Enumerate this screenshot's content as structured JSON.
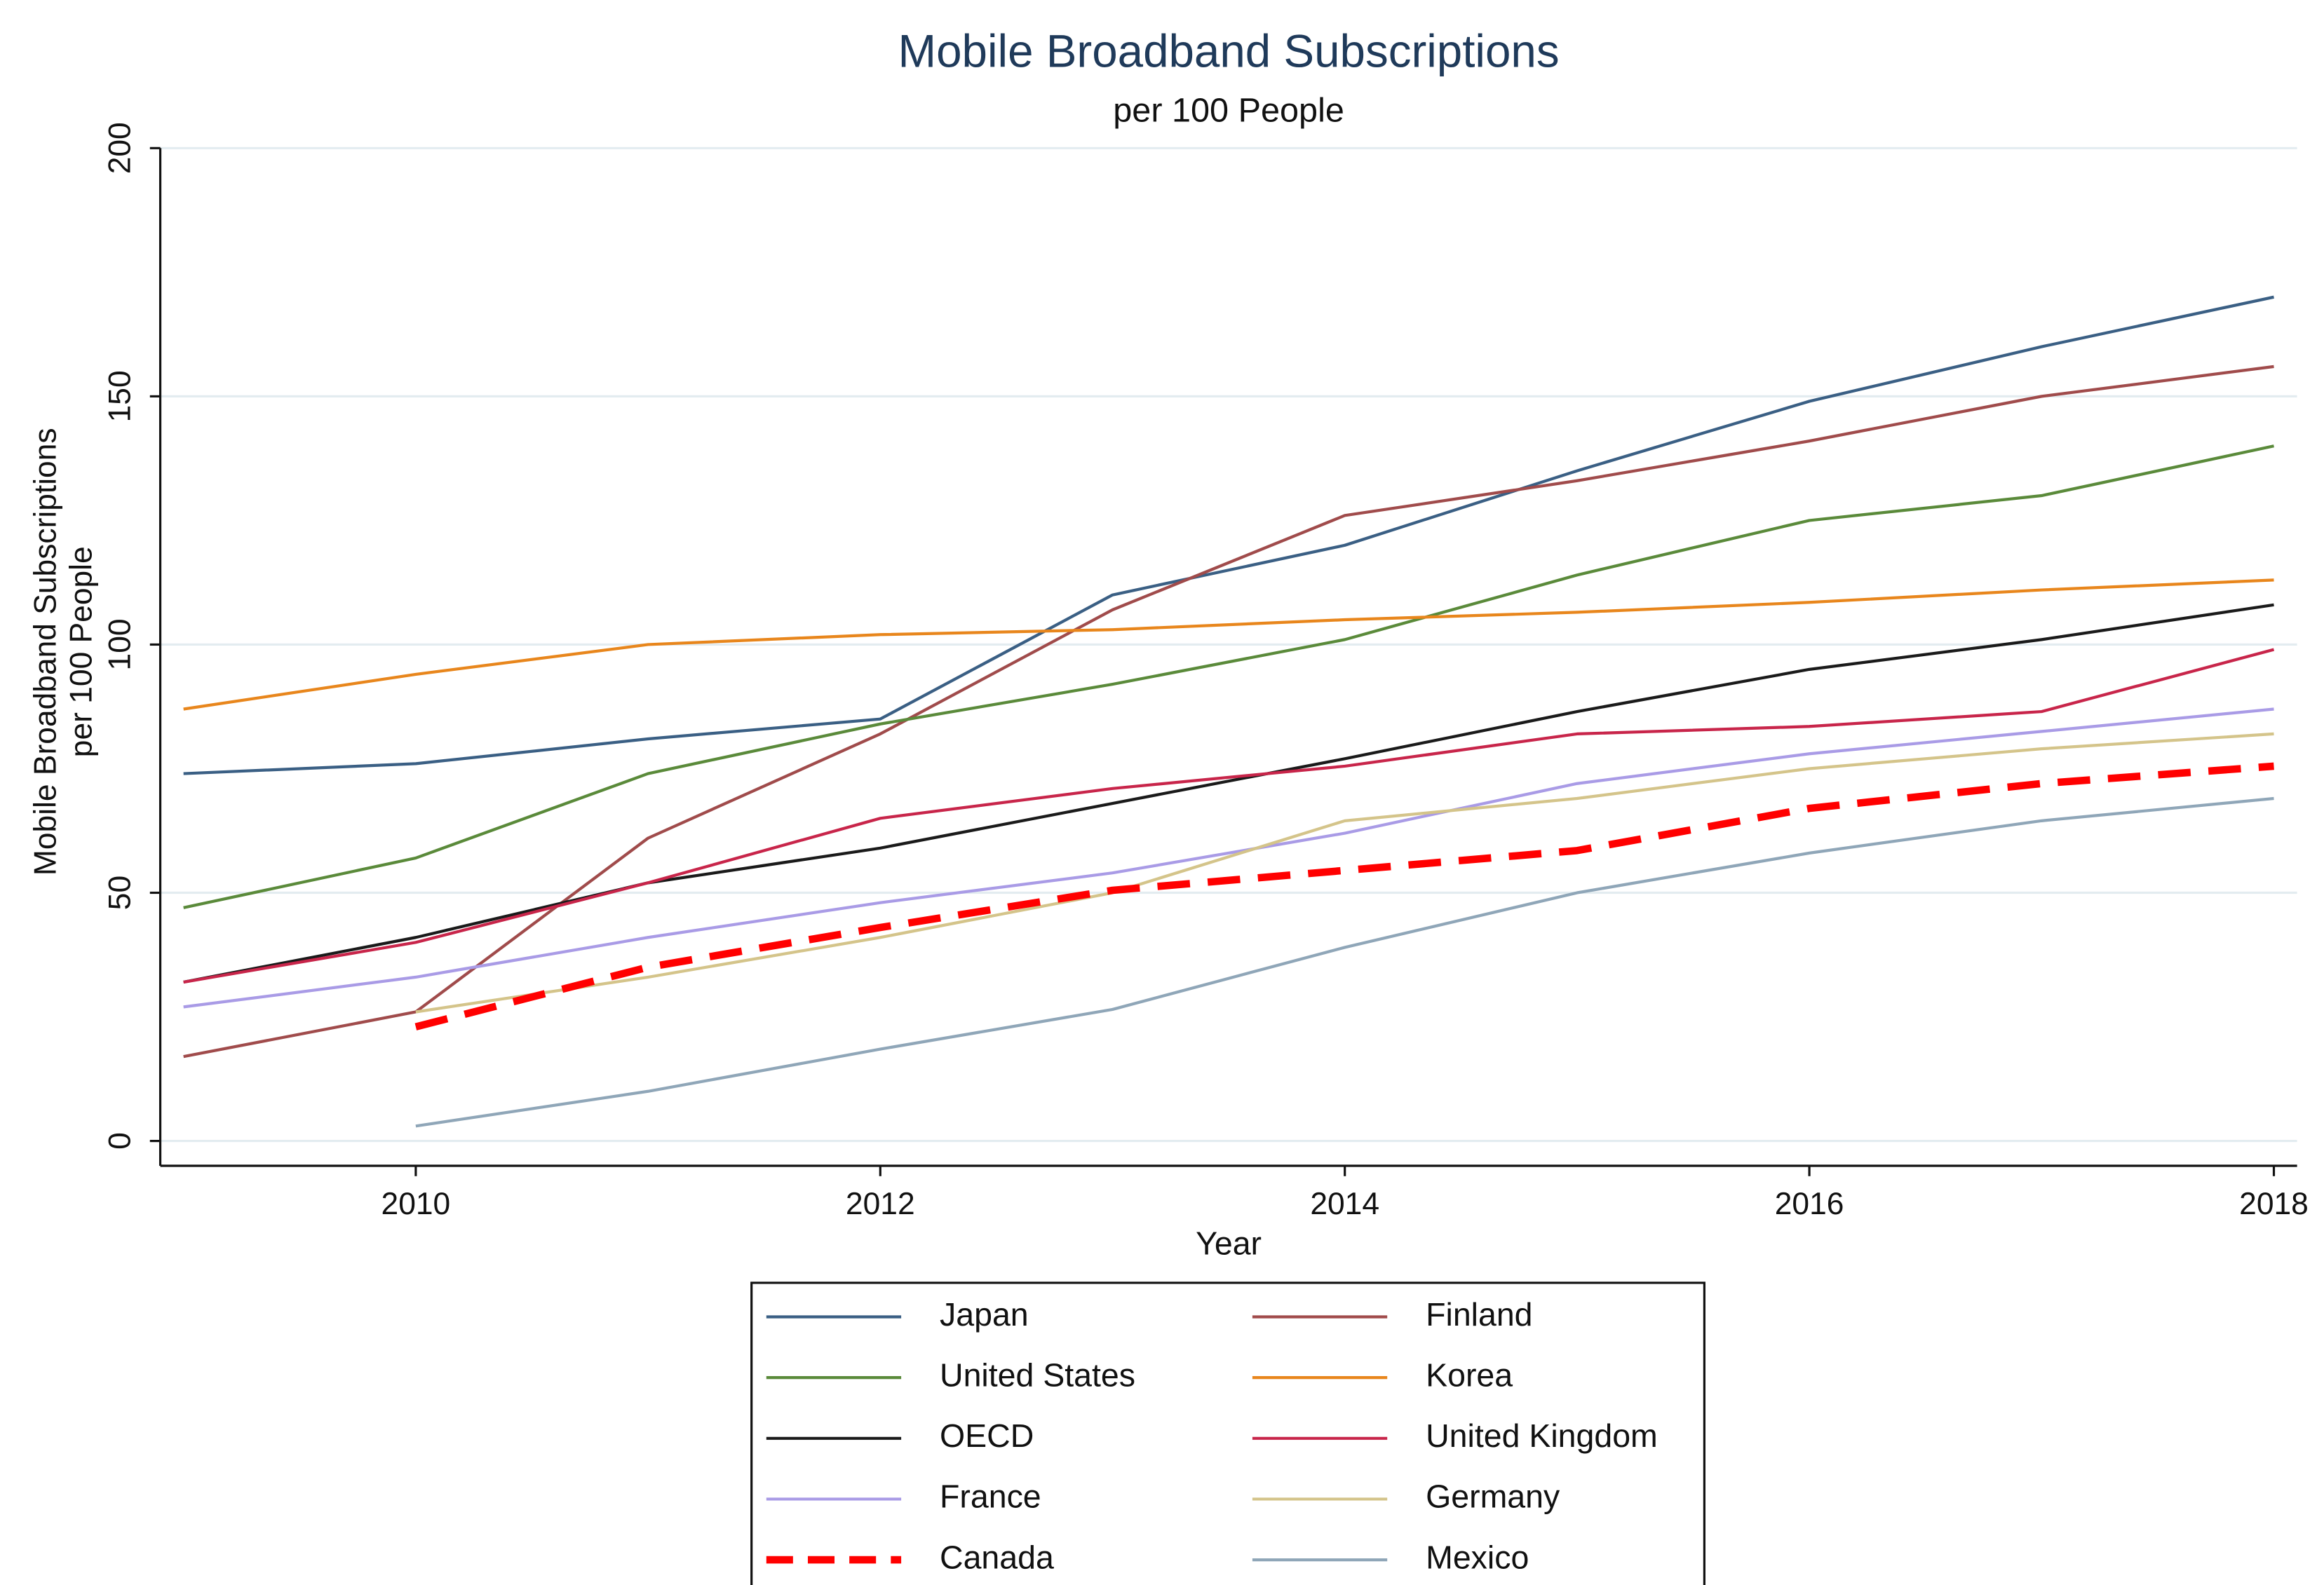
{
  "chart_data": {
    "type": "line",
    "title": "Mobile Broadband Subscriptions",
    "subtitle": "per 100 People",
    "x_label": "Year",
    "y_label": [
      "Mobile Broadband Subscriptions",
      "per 100 People"
    ],
    "x": [
      2009,
      2010,
      2011,
      2012,
      2013,
      2014,
      2015,
      2016,
      2017,
      2018
    ],
    "xlim": [
      2008.9,
      2018.1
    ],
    "xticks": [
      2010,
      2012,
      2014,
      2016,
      2018
    ],
    "ylim": [
      -5,
      200
    ],
    "yticks": [
      0,
      50,
      100,
      150,
      200
    ],
    "grid": true,
    "legend": "bottom",
    "series": [
      {
        "name": "Japan",
        "color": "#3a5f84",
        "values": [
          74,
          76,
          81,
          85,
          110,
          120,
          135,
          149,
          160,
          170
        ]
      },
      {
        "name": "Finland",
        "color": "#a04b4b",
        "values": [
          17,
          26,
          61,
          82,
          107,
          126,
          133,
          141,
          150,
          156
        ]
      },
      {
        "name": "United States",
        "color": "#5a8a3a",
        "values": [
          47,
          57,
          74,
          84,
          92,
          101,
          114,
          125,
          130,
          140
        ]
      },
      {
        "name": "Korea",
        "color": "#e8861c",
        "values": [
          87,
          94,
          100,
          102,
          103,
          105,
          106.5,
          108.5,
          111,
          113
        ]
      },
      {
        "name": "OECD",
        "color": "#1a1a1a",
        "values": [
          32,
          41,
          52,
          59,
          68,
          77,
          86.5,
          95,
          101,
          108
        ]
      },
      {
        "name": "United Kingdom",
        "color": "#c8254a",
        "values": [
          32,
          40,
          52,
          65,
          71,
          75.5,
          82,
          83.5,
          86.5,
          99
        ]
      },
      {
        "name": "France",
        "color": "#a99be6",
        "values": [
          27,
          33,
          41,
          48,
          54,
          62,
          72,
          78,
          82.5,
          87
        ]
      },
      {
        "name": "Germany",
        "color": "#d4c48a",
        "values": [
          null,
          26,
          33,
          41,
          50,
          64.5,
          69,
          75,
          79,
          82
        ]
      },
      {
        "name": "Canada",
        "color": "#ff0000",
        "style": "dashed",
        "values": [
          null,
          23,
          35,
          43,
          50.5,
          54.5,
          58.5,
          67,
          72,
          75.5
        ]
      },
      {
        "name": "Mexico",
        "color": "#8fa6b8",
        "values": [
          null,
          3,
          10,
          18.5,
          26.5,
          39,
          50,
          58,
          64.5,
          69
        ]
      }
    ]
  }
}
